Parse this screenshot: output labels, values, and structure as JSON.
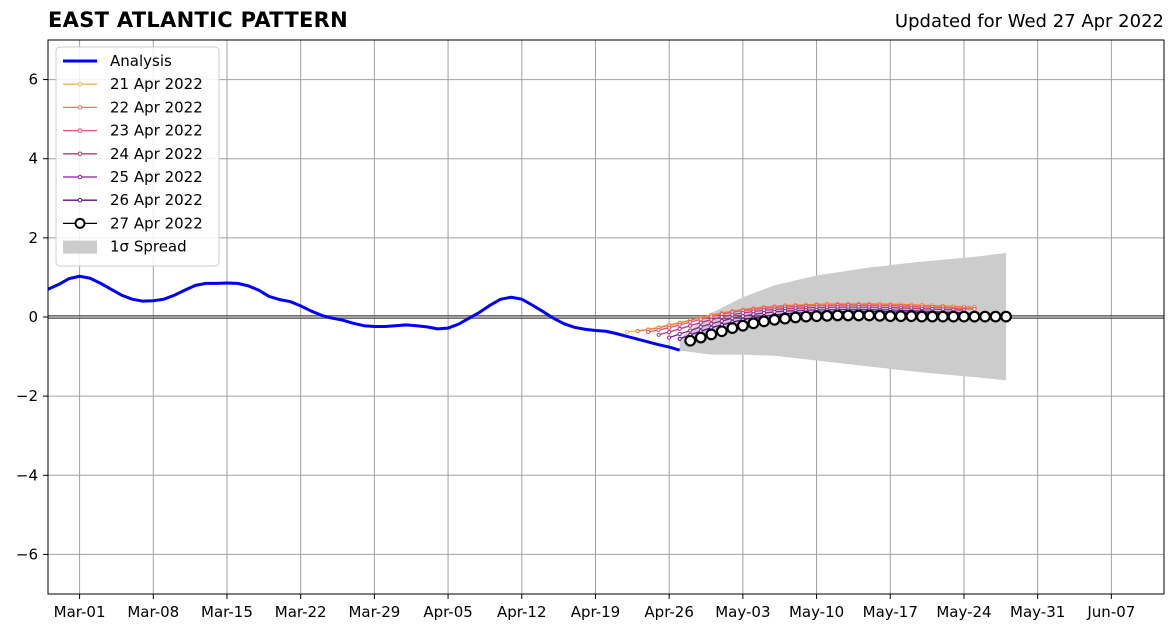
{
  "header": {
    "title": "EAST ATLANTIC PATTERN",
    "updated": "Updated for Wed 27 Apr 2022"
  },
  "chart_data": {
    "type": "line",
    "title": "EAST ATLANTIC PATTERN",
    "xlabel": "",
    "ylabel": "",
    "x_axis": {
      "type": "date",
      "range": [
        "2022-02-26",
        "2022-06-12"
      ],
      "tick_labels": [
        "Mar-01",
        "Mar-08",
        "Mar-15",
        "Mar-22",
        "Mar-29",
        "Apr-05",
        "Apr-12",
        "Apr-19",
        "Apr-26",
        "May-03",
        "May-10",
        "May-17",
        "May-24",
        "May-31",
        "Jun-07"
      ],
      "tick_dates": [
        "2022-03-01",
        "2022-03-08",
        "2022-03-15",
        "2022-03-22",
        "2022-03-29",
        "2022-04-05",
        "2022-04-12",
        "2022-04-19",
        "2022-04-26",
        "2022-05-03",
        "2022-05-10",
        "2022-05-17",
        "2022-05-24",
        "2022-05-31",
        "2022-06-07"
      ]
    },
    "y_axis": {
      "ylim": [
        -7,
        7
      ],
      "ticks": [
        -6,
        -4,
        -2,
        0,
        2,
        4,
        6
      ],
      "tick_labels": [
        "−6",
        "−4",
        "−2",
        "0",
        "2",
        "4",
        "6"
      ]
    },
    "grid": true,
    "zero_line": true,
    "legend": {
      "placement": "top-left",
      "entries": [
        "Analysis",
        "21 Apr 2022",
        "22 Apr 2022",
        "23 Apr 2022",
        "24 Apr 2022",
        "25 Apr 2022",
        "26 Apr 2022",
        "27 Apr 2022",
        "1σ Spread"
      ]
    },
    "series": [
      {
        "name": "Analysis",
        "color": "#0000ff",
        "style": "line",
        "x": [
          "2022-02-26",
          "2022-02-27",
          "2022-02-28",
          "2022-03-01",
          "2022-03-02",
          "2022-03-03",
          "2022-03-04",
          "2022-03-05",
          "2022-03-06",
          "2022-03-07",
          "2022-03-08",
          "2022-03-09",
          "2022-03-10",
          "2022-03-11",
          "2022-03-12",
          "2022-03-13",
          "2022-03-14",
          "2022-03-15",
          "2022-03-16",
          "2022-03-17",
          "2022-03-18",
          "2022-03-19",
          "2022-03-20",
          "2022-03-21",
          "2022-03-22",
          "2022-03-23",
          "2022-03-24",
          "2022-03-25",
          "2022-03-26",
          "2022-03-27",
          "2022-03-28",
          "2022-03-29",
          "2022-03-30",
          "2022-03-31",
          "2022-04-01",
          "2022-04-02",
          "2022-04-03",
          "2022-04-04",
          "2022-04-05",
          "2022-04-06",
          "2022-04-07",
          "2022-04-08",
          "2022-04-09",
          "2022-04-10",
          "2022-04-11",
          "2022-04-12",
          "2022-04-13",
          "2022-04-14",
          "2022-04-15",
          "2022-04-16",
          "2022-04-17",
          "2022-04-18",
          "2022-04-19",
          "2022-04-20",
          "2022-04-21",
          "2022-04-22",
          "2022-04-23",
          "2022-04-24",
          "2022-04-25",
          "2022-04-26",
          "2022-04-27"
        ],
        "y": [
          0.7,
          0.82,
          0.97,
          1.03,
          0.98,
          0.85,
          0.7,
          0.55,
          0.45,
          0.4,
          0.41,
          0.45,
          0.55,
          0.68,
          0.8,
          0.85,
          0.85,
          0.86,
          0.85,
          0.79,
          0.68,
          0.52,
          0.44,
          0.39,
          0.28,
          0.15,
          0.04,
          -0.03,
          -0.08,
          -0.16,
          -0.22,
          -0.24,
          -0.24,
          -0.22,
          -0.2,
          -0.22,
          -0.25,
          -0.3,
          -0.28,
          -0.18,
          -0.03,
          0.12,
          0.3,
          0.45,
          0.5,
          0.45,
          0.3,
          0.14,
          -0.03,
          -0.17,
          -0.26,
          -0.31,
          -0.34,
          -0.36,
          -0.42,
          -0.49,
          -0.56,
          -0.63,
          -0.7,
          -0.76,
          -0.84
        ]
      },
      {
        "name": "21 Apr 2022",
        "color": "#fbb44a",
        "style": "line-marker",
        "x": [
          "2022-04-22",
          "2022-04-23",
          "2022-04-24",
          "2022-04-25",
          "2022-04-26",
          "2022-04-27",
          "2022-04-28",
          "2022-04-29",
          "2022-04-30",
          "2022-05-01",
          "2022-05-02",
          "2022-05-03",
          "2022-05-04",
          "2022-05-05",
          "2022-05-06",
          "2022-05-07",
          "2022-05-08",
          "2022-05-09",
          "2022-05-10",
          "2022-05-11",
          "2022-05-12",
          "2022-05-13",
          "2022-05-14",
          "2022-05-15",
          "2022-05-16",
          "2022-05-17",
          "2022-05-18",
          "2022-05-19",
          "2022-05-20",
          "2022-05-21",
          "2022-05-22",
          "2022-05-23",
          "2022-05-24",
          "2022-05-25"
        ],
        "y": [
          -0.38,
          -0.35,
          -0.31,
          -0.26,
          -0.2,
          -0.14,
          -0.08,
          -0.02,
          0.04,
          0.09,
          0.13,
          0.17,
          0.2,
          0.23,
          0.25,
          0.27,
          0.28,
          0.29,
          0.3,
          0.31,
          0.31,
          0.31,
          0.31,
          0.31,
          0.31,
          0.3,
          0.3,
          0.29,
          0.28,
          0.27,
          0.26,
          0.25,
          0.24,
          0.23
        ]
      },
      {
        "name": "22 Apr 2022",
        "color": "#f57d3c",
        "style": "line-marker",
        "x": [
          "2022-04-23",
          "2022-04-24",
          "2022-04-25",
          "2022-04-26",
          "2022-04-27",
          "2022-04-28",
          "2022-04-29",
          "2022-04-30",
          "2022-05-01",
          "2022-05-02",
          "2022-05-03",
          "2022-05-04",
          "2022-05-05",
          "2022-05-06",
          "2022-05-07",
          "2022-05-08",
          "2022-05-09",
          "2022-05-10",
          "2022-05-11",
          "2022-05-12",
          "2022-05-13",
          "2022-05-14",
          "2022-05-15",
          "2022-05-16",
          "2022-05-17",
          "2022-05-18",
          "2022-05-19",
          "2022-05-20",
          "2022-05-21",
          "2022-05-22",
          "2022-05-23",
          "2022-05-24",
          "2022-05-25"
        ],
        "y": [
          -0.36,
          -0.32,
          -0.27,
          -0.21,
          -0.15,
          -0.08,
          -0.02,
          0.05,
          0.1,
          0.15,
          0.19,
          0.22,
          0.25,
          0.27,
          0.29,
          0.3,
          0.31,
          0.32,
          0.33,
          0.33,
          0.33,
          0.33,
          0.33,
          0.33,
          0.32,
          0.32,
          0.31,
          0.3,
          0.29,
          0.28,
          0.27,
          0.26,
          0.25
        ]
      },
      {
        "name": "23 Apr 2022",
        "color": "#e05574",
        "style": "line-marker",
        "x": [
          "2022-04-24",
          "2022-04-25",
          "2022-04-26",
          "2022-04-27",
          "2022-04-28",
          "2022-04-29",
          "2022-04-30",
          "2022-05-01",
          "2022-05-02",
          "2022-05-03",
          "2022-05-04",
          "2022-05-05",
          "2022-05-06",
          "2022-05-07",
          "2022-05-08",
          "2022-05-09",
          "2022-05-10",
          "2022-05-11",
          "2022-05-12",
          "2022-05-13",
          "2022-05-14",
          "2022-05-15",
          "2022-05-16",
          "2022-05-17",
          "2022-05-18",
          "2022-05-19",
          "2022-05-20",
          "2022-05-21",
          "2022-05-22",
          "2022-05-23",
          "2022-05-24",
          "2022-05-25"
        ],
        "y": [
          -0.38,
          -0.33,
          -0.27,
          -0.2,
          -0.13,
          -0.06,
          0.01,
          0.07,
          0.12,
          0.16,
          0.19,
          0.22,
          0.24,
          0.26,
          0.27,
          0.28,
          0.29,
          0.29,
          0.3,
          0.3,
          0.3,
          0.3,
          0.29,
          0.29,
          0.28,
          0.27,
          0.26,
          0.25,
          0.24,
          0.22,
          0.21,
          0.2
        ]
      },
      {
        "name": "24 Apr 2022",
        "color": "#b5367a",
        "style": "line-marker",
        "x": [
          "2022-04-25",
          "2022-04-26",
          "2022-04-27",
          "2022-04-28",
          "2022-04-29",
          "2022-04-30",
          "2022-05-01",
          "2022-05-02",
          "2022-05-03",
          "2022-05-04",
          "2022-05-05",
          "2022-05-06",
          "2022-05-07",
          "2022-05-08",
          "2022-05-09",
          "2022-05-10",
          "2022-05-11",
          "2022-05-12",
          "2022-05-13",
          "2022-05-14",
          "2022-05-15",
          "2022-05-16",
          "2022-05-17",
          "2022-05-18",
          "2022-05-19",
          "2022-05-20",
          "2022-05-21",
          "2022-05-22",
          "2022-05-23",
          "2022-05-24"
        ],
        "y": [
          -0.45,
          -0.38,
          -0.3,
          -0.22,
          -0.14,
          -0.07,
          0.0,
          0.06,
          0.1,
          0.14,
          0.17,
          0.19,
          0.21,
          0.22,
          0.23,
          0.24,
          0.24,
          0.25,
          0.25,
          0.25,
          0.25,
          0.24,
          0.24,
          0.23,
          0.22,
          0.21,
          0.2,
          0.19,
          0.18,
          0.17
        ]
      },
      {
        "name": "25 Apr 2022",
        "color": "#8e1fa0",
        "style": "line-marker",
        "x": [
          "2022-04-26",
          "2022-04-27",
          "2022-04-28",
          "2022-04-29",
          "2022-04-30",
          "2022-05-01",
          "2022-05-02",
          "2022-05-03",
          "2022-05-04",
          "2022-05-05",
          "2022-05-06",
          "2022-05-07",
          "2022-05-08",
          "2022-05-09",
          "2022-05-10",
          "2022-05-11",
          "2022-05-12",
          "2022-05-13",
          "2022-05-14",
          "2022-05-15",
          "2022-05-16",
          "2022-05-17",
          "2022-05-18",
          "2022-05-19",
          "2022-05-20",
          "2022-05-21",
          "2022-05-22",
          "2022-05-23",
          "2022-05-24"
        ],
        "y": [
          -0.52,
          -0.43,
          -0.34,
          -0.25,
          -0.17,
          -0.1,
          -0.03,
          0.02,
          0.07,
          0.1,
          0.13,
          0.15,
          0.16,
          0.17,
          0.18,
          0.18,
          0.19,
          0.19,
          0.19,
          0.19,
          0.18,
          0.18,
          0.17,
          0.16,
          0.15,
          0.14,
          0.13,
          0.12,
          0.11
        ]
      },
      {
        "name": "26 Apr 2022",
        "color": "#5a0f8c",
        "style": "line-marker",
        "x": [
          "2022-04-27",
          "2022-04-28",
          "2022-04-29",
          "2022-04-30",
          "2022-05-01",
          "2022-05-02",
          "2022-05-03",
          "2022-05-04",
          "2022-05-05",
          "2022-05-06",
          "2022-05-07",
          "2022-05-08",
          "2022-05-09",
          "2022-05-10",
          "2022-05-11",
          "2022-05-12",
          "2022-05-13",
          "2022-05-14",
          "2022-05-15",
          "2022-05-16",
          "2022-05-17",
          "2022-05-18",
          "2022-05-19",
          "2022-05-20",
          "2022-05-21",
          "2022-05-22",
          "2022-05-23",
          "2022-05-24",
          "2022-05-25"
        ],
        "y": [
          -0.55,
          -0.45,
          -0.36,
          -0.27,
          -0.2,
          -0.13,
          -0.07,
          -0.02,
          0.02,
          0.05,
          0.08,
          0.1,
          0.11,
          0.12,
          0.13,
          0.13,
          0.14,
          0.14,
          0.14,
          0.14,
          0.13,
          0.13,
          0.12,
          0.12,
          0.11,
          0.1,
          0.1,
          0.09,
          0.09
        ]
      },
      {
        "name": "27 Apr 2022",
        "color": "#000000",
        "style": "open-circle",
        "x": [
          "2022-04-28",
          "2022-04-29",
          "2022-04-30",
          "2022-05-01",
          "2022-05-02",
          "2022-05-03",
          "2022-05-04",
          "2022-05-05",
          "2022-05-06",
          "2022-05-07",
          "2022-05-08",
          "2022-05-09",
          "2022-05-10",
          "2022-05-11",
          "2022-05-12",
          "2022-05-13",
          "2022-05-14",
          "2022-05-15",
          "2022-05-16",
          "2022-05-17",
          "2022-05-18",
          "2022-05-19",
          "2022-05-20",
          "2022-05-21",
          "2022-05-22",
          "2022-05-23",
          "2022-05-24",
          "2022-05-25",
          "2022-05-26",
          "2022-05-27",
          "2022-05-28"
        ],
        "y": [
          -0.6,
          -0.52,
          -0.44,
          -0.36,
          -0.28,
          -0.22,
          -0.16,
          -0.11,
          -0.07,
          -0.04,
          -0.01,
          0.01,
          0.02,
          0.03,
          0.04,
          0.04,
          0.04,
          0.04,
          0.03,
          0.02,
          0.02,
          0.02,
          0.01,
          0.01,
          0.01,
          0.01,
          0.01,
          0.01,
          0.01,
          0.01,
          0.01
        ]
      }
    ],
    "spread": {
      "name": "1σ Spread",
      "color": "#cccccc",
      "x": [
        "2022-04-27",
        "2022-04-30",
        "2022-05-03",
        "2022-05-06",
        "2022-05-10",
        "2022-05-15",
        "2022-05-20",
        "2022-05-25",
        "2022-05-28"
      ],
      "upper": [
        -0.55,
        0.1,
        0.5,
        0.8,
        1.05,
        1.25,
        1.4,
        1.52,
        1.62
      ],
      "lower": [
        -0.85,
        -0.95,
        -0.95,
        -0.98,
        -1.1,
        -1.25,
        -1.4,
        -1.52,
        -1.6
      ]
    }
  }
}
